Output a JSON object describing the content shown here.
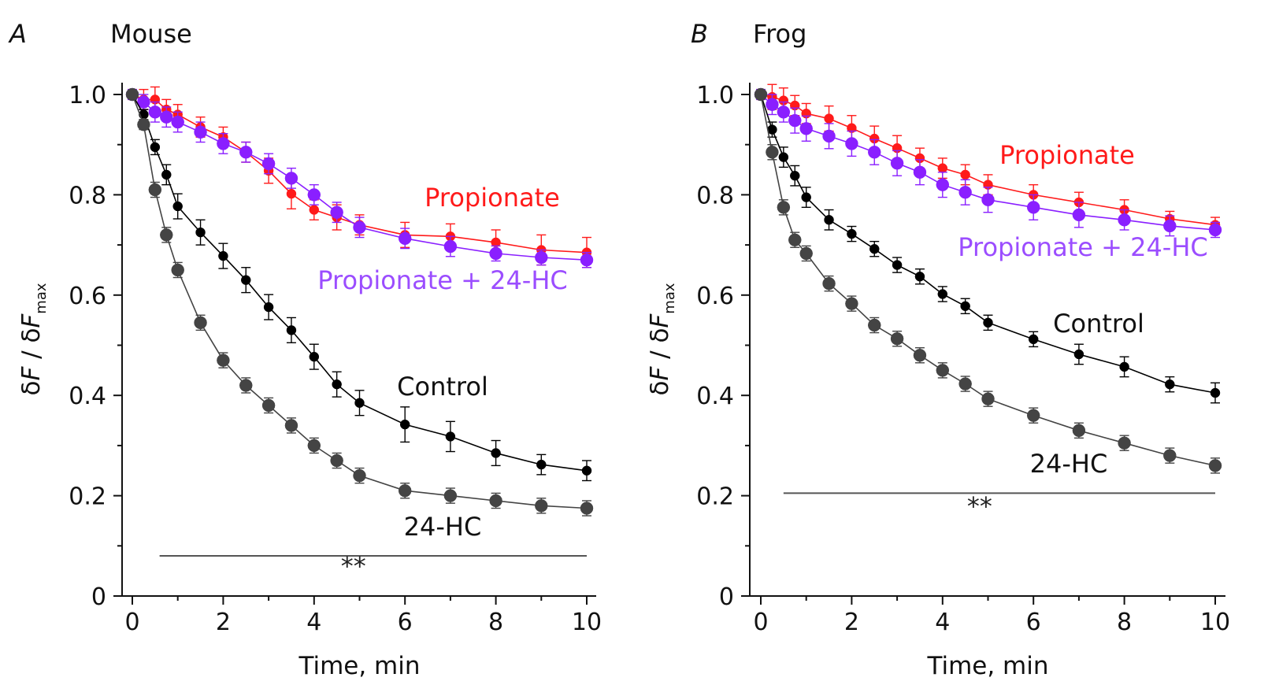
{
  "chart_data": [
    {
      "type": "line",
      "panel_letter": "A",
      "title": "Mouse",
      "xlabel": "Time, min",
      "ylabel": "δF / δFmax",
      "ylabel_parts": [
        "δ",
        "F",
        " / δ",
        "F",
        "max"
      ],
      "xlim": [
        0,
        10
      ],
      "ylim": [
        0,
        1.0
      ],
      "xticks": [
        "0",
        "2",
        "4",
        "6",
        "8",
        "10"
      ],
      "yticks": [
        "0",
        "0.2",
        "0.4",
        "0.6",
        "0.8",
        "1.0"
      ],
      "grid": false,
      "x": [
        0,
        0.25,
        0.5,
        0.75,
        1,
        1.5,
        2,
        2.5,
        3,
        3.5,
        4,
        4.5,
        5,
        6,
        7,
        8,
        9,
        10
      ],
      "series": [
        {
          "name": "Propionate",
          "color": "#ff1a1a",
          "marker_size": "small",
          "values": [
            1.0,
            0.99,
            0.99,
            0.97,
            0.96,
            0.935,
            0.915,
            0.885,
            0.848,
            0.802,
            0.77,
            0.755,
            0.74,
            0.72,
            0.717,
            0.705,
            0.69,
            0.685
          ],
          "errors": [
            0.01,
            0.02,
            0.025,
            0.02,
            0.02,
            0.02,
            0.02,
            0.02,
            0.025,
            0.03,
            0.02,
            0.025,
            0.02,
            0.025,
            0.025,
            0.025,
            0.03,
            0.03
          ]
        },
        {
          "name": "Propionate + 24-HC",
          "color": "#8a1fff",
          "marker_size": "large",
          "values": [
            1.0,
            0.985,
            0.965,
            0.955,
            0.945,
            0.925,
            0.902,
            0.885,
            0.862,
            0.833,
            0.8,
            0.765,
            0.735,
            0.713,
            0.697,
            0.683,
            0.675,
            0.67
          ],
          "errors": [
            0.01,
            0.015,
            0.02,
            0.02,
            0.02,
            0.02,
            0.02,
            0.02,
            0.02,
            0.02,
            0.02,
            0.02,
            0.02,
            0.02,
            0.02,
            0.015,
            0.015,
            0.015
          ]
        },
        {
          "name": "Control",
          "color": "#000000",
          "marker_size": "small",
          "values": [
            1.0,
            0.96,
            0.895,
            0.84,
            0.777,
            0.725,
            0.678,
            0.63,
            0.576,
            0.53,
            0.477,
            0.422,
            0.385,
            0.342,
            0.318,
            0.285,
            0.262,
            0.25
          ],
          "errors": [
            0.005,
            0.01,
            0.015,
            0.02,
            0.025,
            0.025,
            0.025,
            0.025,
            0.025,
            0.025,
            0.025,
            0.025,
            0.025,
            0.035,
            0.03,
            0.025,
            0.02,
            0.02
          ]
        },
        {
          "name": "24-HC",
          "color": "#444444",
          "marker_size": "large",
          "values": [
            1.0,
            0.94,
            0.81,
            0.72,
            0.65,
            0.545,
            0.47,
            0.42,
            0.38,
            0.34,
            0.3,
            0.27,
            0.24,
            0.21,
            0.2,
            0.19,
            0.18,
            0.175
          ],
          "errors": [
            0.005,
            0.01,
            0.015,
            0.015,
            0.015,
            0.015,
            0.015,
            0.015,
            0.015,
            0.015,
            0.015,
            0.015,
            0.015,
            0.015,
            0.015,
            0.015,
            0.015,
            0.015
          ]
        }
      ],
      "significance": {
        "text": "**",
        "x_from": 0.6,
        "x_to": 10,
        "y": 0.08
      }
    },
    {
      "type": "line",
      "panel_letter": "B",
      "title": "Frog",
      "xlabel": "Time, min",
      "ylabel": "δF / δFmax",
      "ylabel_parts": [
        "δ",
        "F",
        " / δ",
        "F",
        "max"
      ],
      "xlim": [
        0,
        10
      ],
      "ylim": [
        0,
        1.0
      ],
      "xticks": [
        "0",
        "2",
        "4",
        "6",
        "8",
        "10"
      ],
      "yticks": [
        "0",
        "0.2",
        "0.4",
        "0.6",
        "0.8",
        "1.0"
      ],
      "grid": false,
      "x": [
        0,
        0.25,
        0.5,
        0.75,
        1,
        1.5,
        2,
        2.5,
        3,
        3.5,
        4,
        4.5,
        5,
        6,
        7,
        8,
        9,
        10
      ],
      "series": [
        {
          "name": "Propionate",
          "color": "#ff1a1a",
          "marker_size": "small",
          "values": [
            1.0,
            0.995,
            0.988,
            0.978,
            0.962,
            0.952,
            0.933,
            0.912,
            0.893,
            0.873,
            0.853,
            0.84,
            0.82,
            0.8,
            0.785,
            0.77,
            0.752,
            0.74
          ],
          "errors": [
            0.01,
            0.025,
            0.025,
            0.02,
            0.02,
            0.025,
            0.025,
            0.025,
            0.025,
            0.02,
            0.02,
            0.02,
            0.02,
            0.02,
            0.02,
            0.02,
            0.015,
            0.015
          ]
        },
        {
          "name": "Propionate + 24-HC",
          "color": "#8a1fff",
          "marker_size": "large",
          "values": [
            1.0,
            0.98,
            0.965,
            0.948,
            0.932,
            0.917,
            0.902,
            0.885,
            0.863,
            0.845,
            0.82,
            0.805,
            0.79,
            0.775,
            0.76,
            0.75,
            0.738,
            0.73
          ],
          "errors": [
            0.01,
            0.02,
            0.02,
            0.025,
            0.025,
            0.025,
            0.025,
            0.025,
            0.025,
            0.025,
            0.025,
            0.025,
            0.025,
            0.025,
            0.025,
            0.02,
            0.02,
            0.015
          ]
        },
        {
          "name": "Control",
          "color": "#000000",
          "marker_size": "small",
          "values": [
            1.0,
            0.93,
            0.875,
            0.838,
            0.795,
            0.75,
            0.722,
            0.692,
            0.66,
            0.637,
            0.602,
            0.578,
            0.545,
            0.512,
            0.482,
            0.457,
            0.422,
            0.405
          ],
          "errors": [
            0.005,
            0.015,
            0.02,
            0.02,
            0.02,
            0.02,
            0.015,
            0.015,
            0.015,
            0.015,
            0.015,
            0.015,
            0.015,
            0.015,
            0.02,
            0.02,
            0.015,
            0.02
          ]
        },
        {
          "name": "24-HC",
          "color": "#444444",
          "marker_size": "large",
          "values": [
            1.0,
            0.885,
            0.775,
            0.71,
            0.683,
            0.623,
            0.583,
            0.54,
            0.513,
            0.48,
            0.45,
            0.423,
            0.393,
            0.36,
            0.33,
            0.305,
            0.28,
            0.26
          ],
          "errors": [
            0.005,
            0.015,
            0.015,
            0.015,
            0.015,
            0.015,
            0.015,
            0.015,
            0.015,
            0.015,
            0.015,
            0.015,
            0.015,
            0.015,
            0.015,
            0.015,
            0.015,
            0.015
          ]
        }
      ],
      "significance": {
        "text": "**",
        "x_from": 0.5,
        "x_to": 10,
        "y": 0.205
      }
    }
  ]
}
